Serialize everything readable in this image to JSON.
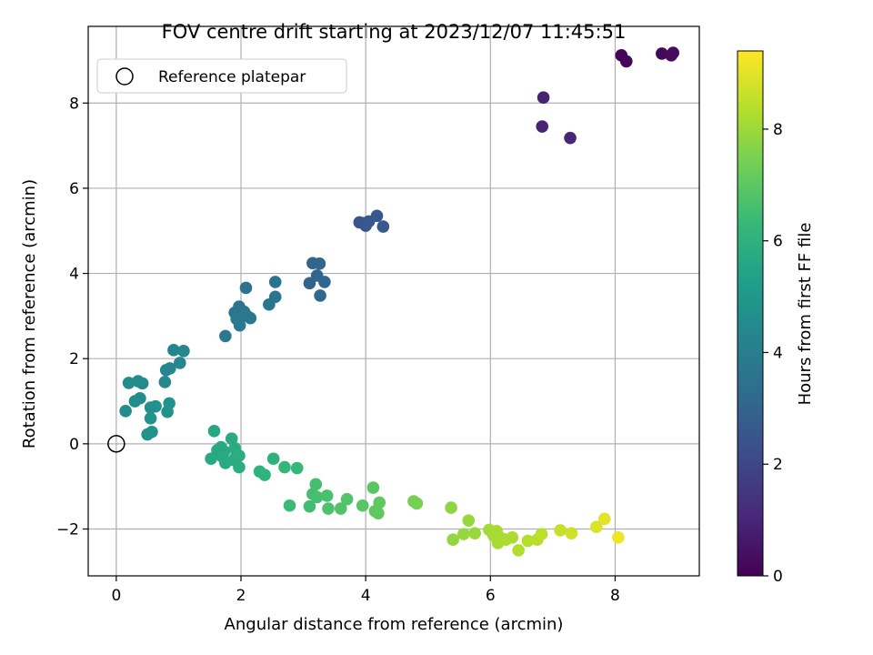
{
  "chart_data": {
    "type": "scatter",
    "title": "FOV centre drift starting at 2023/12/07 11:45:51",
    "xlabel": "Angular distance from reference (arcmin)",
    "ylabel": "Rotation from reference (arcmin)",
    "xlim": [
      -0.45,
      9.35
    ],
    "ylim": [
      -3.1,
      9.8
    ],
    "xticks": [
      0,
      2,
      4,
      6,
      8
    ],
    "yticks": [
      -2,
      0,
      2,
      4,
      6,
      8
    ],
    "xtick_labels": [
      "0",
      "2",
      "4",
      "6",
      "8"
    ],
    "ytick_labels": [
      "−2",
      "0",
      "2",
      "4",
      "6",
      "8"
    ],
    "grid": true,
    "legend": {
      "position": "top-left",
      "entries": [
        "Reference platepar"
      ]
    },
    "reference_point": {
      "x": 0,
      "y": 0,
      "label": "Reference platepar"
    },
    "colorbar": {
      "label": "Hours from first FF file",
      "colormap": "viridis",
      "range": [
        0,
        9.4
      ],
      "ticks": [
        0,
        2,
        4,
        6,
        8
      ],
      "tick_labels": [
        "0",
        "2",
        "4",
        "6",
        "8"
      ]
    },
    "colors": {
      "viridis": [
        "#440154",
        "#482878",
        "#3e4989",
        "#31688e",
        "#26828e",
        "#1f9e89",
        "#35b779",
        "#6ece58",
        "#b5de2b",
        "#fde725"
      ]
    },
    "points": [
      {
        "x": 8.1,
        "y": 9.12,
        "t": 0.1
      },
      {
        "x": 8.18,
        "y": 8.98,
        "t": 0.15
      },
      {
        "x": 8.75,
        "y": 9.16,
        "t": 0.2
      },
      {
        "x": 8.9,
        "y": 9.12,
        "t": 0.25
      },
      {
        "x": 8.93,
        "y": 9.18,
        "t": 0.3
      },
      {
        "x": 6.85,
        "y": 8.13,
        "t": 0.9
      },
      {
        "x": 6.83,
        "y": 7.45,
        "t": 0.95
      },
      {
        "x": 7.28,
        "y": 7.18,
        "t": 1.0
      },
      {
        "x": 3.9,
        "y": 5.2,
        "t": 2.5
      },
      {
        "x": 3.97,
        "y": 5.18,
        "t": 2.52
      },
      {
        "x": 4.0,
        "y": 5.12,
        "t": 2.55
      },
      {
        "x": 4.05,
        "y": 5.22,
        "t": 2.58
      },
      {
        "x": 4.18,
        "y": 5.35,
        "t": 2.6
      },
      {
        "x": 4.28,
        "y": 5.1,
        "t": 2.62
      },
      {
        "x": 3.1,
        "y": 3.77,
        "t": 3.0
      },
      {
        "x": 3.15,
        "y": 4.24,
        "t": 3.02
      },
      {
        "x": 3.22,
        "y": 3.95,
        "t": 3.05
      },
      {
        "x": 3.26,
        "y": 4.23,
        "t": 3.07
      },
      {
        "x": 3.34,
        "y": 3.8,
        "t": 3.1
      },
      {
        "x": 3.27,
        "y": 3.48,
        "t": 3.12
      },
      {
        "x": 2.08,
        "y": 3.66,
        "t": 3.6
      },
      {
        "x": 2.55,
        "y": 3.8,
        "t": 3.62
      },
      {
        "x": 2.55,
        "y": 3.45,
        "t": 3.64
      },
      {
        "x": 2.45,
        "y": 3.27,
        "t": 3.66
      },
      {
        "x": 1.9,
        "y": 3.08,
        "t": 3.68
      },
      {
        "x": 1.97,
        "y": 3.22,
        "t": 3.7
      },
      {
        "x": 2.05,
        "y": 3.1,
        "t": 3.72
      },
      {
        "x": 2.1,
        "y": 3.0,
        "t": 3.74
      },
      {
        "x": 2.15,
        "y": 2.95,
        "t": 3.76
      },
      {
        "x": 1.93,
        "y": 2.93,
        "t": 3.78
      },
      {
        "x": 1.98,
        "y": 2.78,
        "t": 3.8
      },
      {
        "x": 1.75,
        "y": 2.53,
        "t": 3.82
      },
      {
        "x": 0.92,
        "y": 2.2,
        "t": 4.3
      },
      {
        "x": 1.08,
        "y": 2.18,
        "t": 4.32
      },
      {
        "x": 1.02,
        "y": 1.9,
        "t": 4.34
      },
      {
        "x": 0.8,
        "y": 1.73,
        "t": 4.36
      },
      {
        "x": 0.86,
        "y": 1.77,
        "t": 4.38
      },
      {
        "x": 0.78,
        "y": 1.45,
        "t": 4.4
      },
      {
        "x": 0.35,
        "y": 1.47,
        "t": 4.5
      },
      {
        "x": 0.42,
        "y": 1.42,
        "t": 4.52
      },
      {
        "x": 0.2,
        "y": 1.43,
        "t": 4.54
      },
      {
        "x": 0.38,
        "y": 1.07,
        "t": 4.56
      },
      {
        "x": 0.3,
        "y": 1.0,
        "t": 4.58
      },
      {
        "x": 0.15,
        "y": 0.77,
        "t": 4.6
      },
      {
        "x": 0.55,
        "y": 0.85,
        "t": 4.7
      },
      {
        "x": 0.63,
        "y": 0.88,
        "t": 4.72
      },
      {
        "x": 0.85,
        "y": 0.95,
        "t": 4.74
      },
      {
        "x": 0.82,
        "y": 0.75,
        "t": 4.76
      },
      {
        "x": 0.55,
        "y": 0.6,
        "t": 4.78
      },
      {
        "x": 0.57,
        "y": 0.28,
        "t": 4.8
      },
      {
        "x": 0.5,
        "y": 0.22,
        "t": 4.82
      },
      {
        "x": 1.57,
        "y": 0.3,
        "t": 5.6
      },
      {
        "x": 1.62,
        "y": -0.15,
        "t": 5.62
      },
      {
        "x": 1.68,
        "y": -0.08,
        "t": 5.64
      },
      {
        "x": 1.73,
        "y": -0.18,
        "t": 5.66
      },
      {
        "x": 1.52,
        "y": -0.35,
        "t": 5.68
      },
      {
        "x": 1.7,
        "y": -0.3,
        "t": 5.7
      },
      {
        "x": 1.75,
        "y": -0.45,
        "t": 5.72
      },
      {
        "x": 1.85,
        "y": 0.12,
        "t": 5.74
      },
      {
        "x": 1.9,
        "y": -0.1,
        "t": 5.76
      },
      {
        "x": 1.93,
        "y": -0.25,
        "t": 5.78
      },
      {
        "x": 1.88,
        "y": -0.38,
        "t": 5.8
      },
      {
        "x": 1.97,
        "y": -0.28,
        "t": 5.82
      },
      {
        "x": 1.97,
        "y": -0.55,
        "t": 5.84
      },
      {
        "x": 2.52,
        "y": -0.35,
        "t": 6.0
      },
      {
        "x": 2.3,
        "y": -0.65,
        "t": 6.05
      },
      {
        "x": 2.38,
        "y": -0.73,
        "t": 6.1
      },
      {
        "x": 2.7,
        "y": -0.55,
        "t": 6.2
      },
      {
        "x": 2.9,
        "y": -0.57,
        "t": 6.25
      },
      {
        "x": 2.78,
        "y": -1.45,
        "t": 6.4
      },
      {
        "x": 3.1,
        "y": -1.47,
        "t": 6.5
      },
      {
        "x": 3.15,
        "y": -1.18,
        "t": 6.55
      },
      {
        "x": 3.2,
        "y": -0.95,
        "t": 6.6
      },
      {
        "x": 3.22,
        "y": -1.25,
        "t": 6.62
      },
      {
        "x": 3.38,
        "y": -1.22,
        "t": 6.65
      },
      {
        "x": 3.4,
        "y": -1.52,
        "t": 6.7
      },
      {
        "x": 3.6,
        "y": -1.52,
        "t": 6.75
      },
      {
        "x": 3.7,
        "y": -1.3,
        "t": 6.8
      },
      {
        "x": 3.95,
        "y": -1.45,
        "t": 6.9
      },
      {
        "x": 4.12,
        "y": -1.03,
        "t": 6.95
      },
      {
        "x": 4.15,
        "y": -1.58,
        "t": 7.0
      },
      {
        "x": 4.2,
        "y": -1.63,
        "t": 7.02
      },
      {
        "x": 4.22,
        "y": -1.38,
        "t": 7.04
      },
      {
        "x": 4.77,
        "y": -1.35,
        "t": 7.4
      },
      {
        "x": 4.82,
        "y": -1.4,
        "t": 7.45
      },
      {
        "x": 5.37,
        "y": -1.5,
        "t": 7.8
      },
      {
        "x": 5.4,
        "y": -2.25,
        "t": 7.85
      },
      {
        "x": 5.57,
        "y": -2.12,
        "t": 7.9
      },
      {
        "x": 5.65,
        "y": -1.8,
        "t": 7.92
      },
      {
        "x": 5.75,
        "y": -2.1,
        "t": 7.95
      },
      {
        "x": 5.98,
        "y": -2.02,
        "t": 8.1
      },
      {
        "x": 6.05,
        "y": -2.15,
        "t": 8.12
      },
      {
        "x": 6.1,
        "y": -2.05,
        "t": 8.14
      },
      {
        "x": 6.12,
        "y": -2.33,
        "t": 8.16
      },
      {
        "x": 6.18,
        "y": -2.22,
        "t": 8.18
      },
      {
        "x": 6.25,
        "y": -2.25,
        "t": 8.2
      },
      {
        "x": 6.35,
        "y": -2.2,
        "t": 8.22
      },
      {
        "x": 6.45,
        "y": -2.5,
        "t": 8.3
      },
      {
        "x": 6.6,
        "y": -2.28,
        "t": 8.35
      },
      {
        "x": 6.75,
        "y": -2.25,
        "t": 8.4
      },
      {
        "x": 6.82,
        "y": -2.12,
        "t": 8.45
      },
      {
        "x": 7.12,
        "y": -2.03,
        "t": 8.6
      },
      {
        "x": 7.3,
        "y": -2.1,
        "t": 8.7
      },
      {
        "x": 7.7,
        "y": -1.95,
        "t": 8.9
      },
      {
        "x": 7.83,
        "y": -1.76,
        "t": 9.0
      },
      {
        "x": 8.05,
        "y": -2.2,
        "t": 9.2
      }
    ]
  }
}
